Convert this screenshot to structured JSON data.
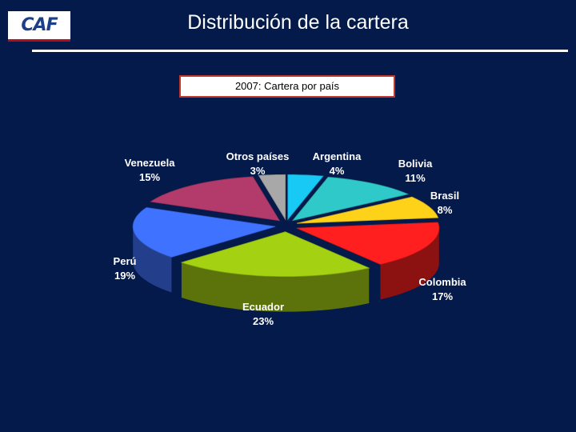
{
  "header": {
    "logo_text": "CAF",
    "title": "Distribución de la cartera"
  },
  "chart_data": {
    "type": "pie",
    "title": "2007: Cartera por país",
    "slices": [
      {
        "label": "Argentina",
        "value": 4,
        "value_label": "4%",
        "color": "#18c8f5"
      },
      {
        "label": "Bolivia",
        "value": 11,
        "value_label": "11%",
        "color": "#2fc9c9"
      },
      {
        "label": "Brasil",
        "value": 8,
        "value_label": "8%",
        "color": "#ffd21a"
      },
      {
        "label": "Colombia",
        "value": 17,
        "value_label": "17%",
        "color": "#ff1f1f"
      },
      {
        "label": "Ecuador",
        "value": 23,
        "value_label": "23%",
        "color": "#a5d113"
      },
      {
        "label": "Perú",
        "value": 19,
        "value_label": "19%",
        "color": "#3f72ff"
      },
      {
        "label": "Venezuela",
        "value": 15,
        "value_label": "15%",
        "color": "#b33b6b"
      },
      {
        "label": "Otros países",
        "value": 3,
        "value_label": "3%",
        "color": "#a8a8a8"
      }
    ]
  }
}
